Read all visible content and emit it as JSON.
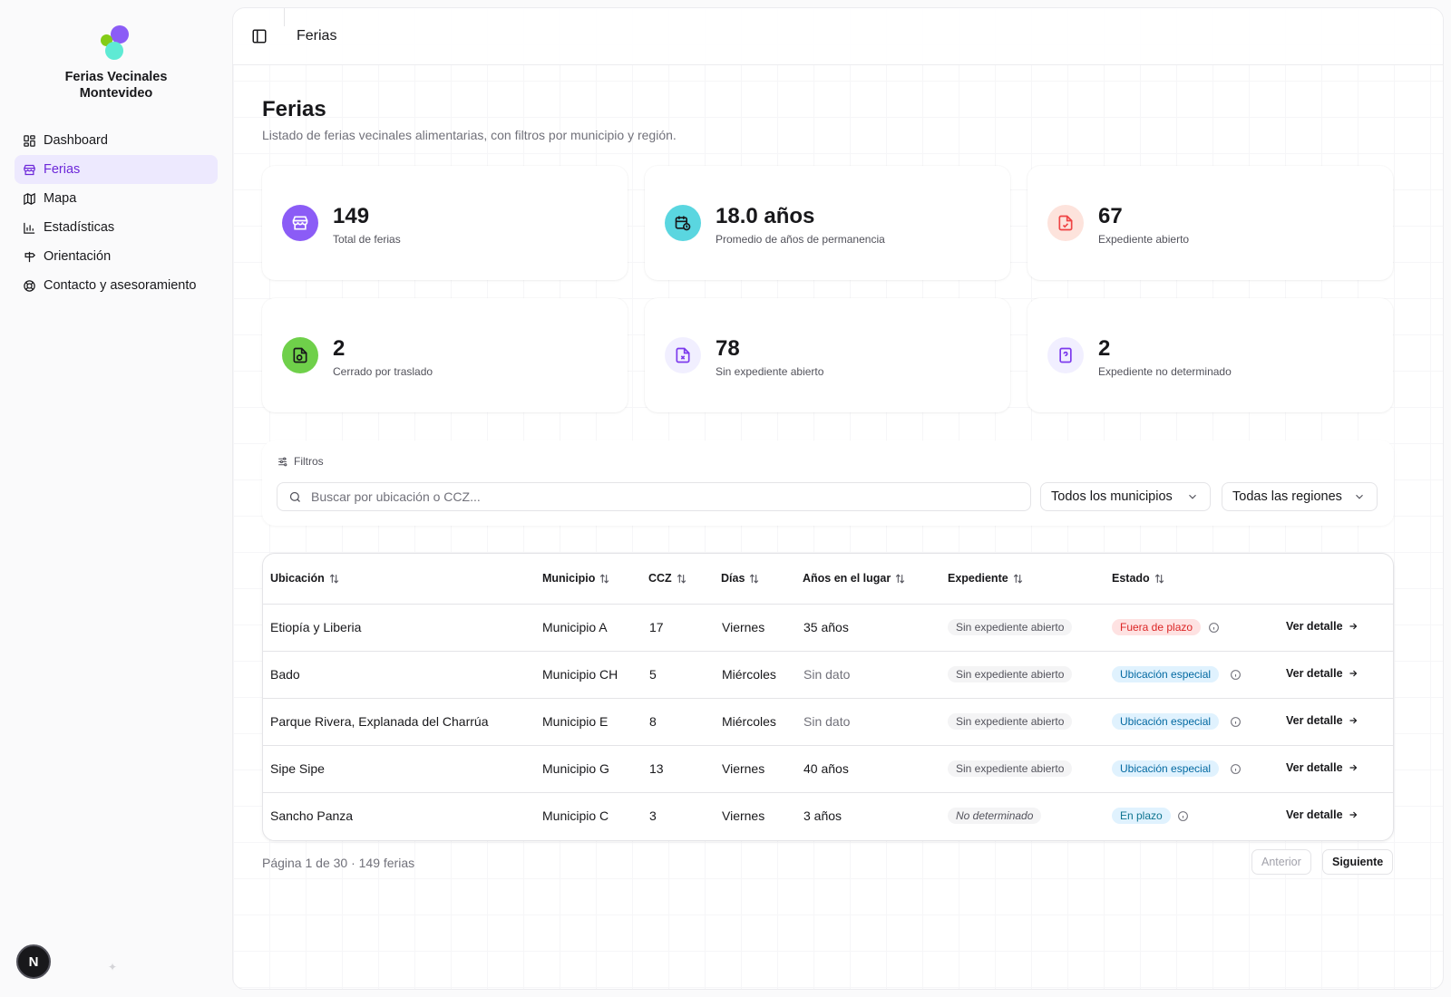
{
  "brand": {
    "name_line1": "Ferias Vecinales",
    "name_line2": "Montevideo"
  },
  "sidebar": {
    "items": [
      {
        "label": "Dashboard",
        "icon": "dashboard-icon",
        "active": false
      },
      {
        "label": "Ferias",
        "icon": "store-icon",
        "active": true
      },
      {
        "label": "Mapa",
        "icon": "map-icon",
        "active": false
      },
      {
        "label": "Estadísticas",
        "icon": "bar-chart-icon",
        "active": false
      },
      {
        "label": "Orientación",
        "icon": "signpost-icon",
        "active": false
      },
      {
        "label": "Contacto y asesoramiento",
        "icon": "lifebuoy-icon",
        "active": false
      }
    ],
    "user_badge": "N"
  },
  "header": {
    "title": "Ferias"
  },
  "page": {
    "title": "Ferias",
    "subtitle": "Listado de ferias vecinales alimentarias, con filtros por municipio y región."
  },
  "stats": [
    {
      "value": "149",
      "label": "Total de ferias",
      "icon": "store-icon",
      "color": "#8b5cf6"
    },
    {
      "value": "18.0 años",
      "label": "Promedio de años de permanencia",
      "icon": "calendar-clock-icon",
      "color": "#5ad6e0"
    },
    {
      "value": "67",
      "label": "Expediente abierto",
      "icon": "file-check-icon",
      "color": "#fde3dc"
    },
    {
      "value": "2",
      "label": "Cerrado por traslado",
      "icon": "file-cycle-icon",
      "color": "#6fd04a"
    },
    {
      "value": "78",
      "label": "Sin expediente abierto",
      "icon": "file-x-icon",
      "color": "#f1efff"
    },
    {
      "value": "2",
      "label": "Expediente no determinado",
      "icon": "file-question-icon",
      "color": "#f1efff"
    }
  ],
  "filters": {
    "title": "Filtros",
    "search_placeholder": "Buscar por ubicación o CCZ...",
    "municipio": "Todos los municipios",
    "region": "Todas las regiones"
  },
  "table": {
    "columns": [
      "Ubicación",
      "Municipio",
      "CCZ",
      "Días",
      "Años en el lugar",
      "Expediente",
      "Estado"
    ],
    "rows": [
      {
        "ubicacion": "Etiopía y Liberia",
        "municipio": "Municipio A",
        "ccz": "17",
        "dias": "Viernes",
        "anios": "35 años",
        "expediente": "Sin expediente abierto",
        "estado": "Fuera de plazo",
        "estado_tone": "red"
      },
      {
        "ubicacion": "Bado",
        "municipio": "Municipio CH",
        "ccz": "5",
        "dias": "Miércoles",
        "anios": "Sin dato",
        "expediente": "Sin expediente abierto",
        "estado": "Ubicación especial",
        "estado_tone": "blue"
      },
      {
        "ubicacion": "Parque Rivera, Explanada del Charrúa",
        "municipio": "Municipio E",
        "ccz": "8",
        "dias": "Miércoles",
        "anios": "Sin dato",
        "expediente": "Sin expediente abierto",
        "estado": "Ubicación especial",
        "estado_tone": "blue"
      },
      {
        "ubicacion": "Sipe Sipe",
        "municipio": "Municipio G",
        "ccz": "13",
        "dias": "Viernes",
        "anios": "40 años",
        "expediente": "Sin expediente abierto",
        "estado": "Ubicación especial",
        "estado_tone": "blue"
      },
      {
        "ubicacion": "Sancho Panza",
        "municipio": "Municipio C",
        "ccz": "3",
        "dias": "Viernes",
        "anios": "3 años",
        "expediente": "No determinado",
        "estado": "En plazo",
        "estado_tone": "teal"
      }
    ],
    "detail_label": "Ver detalle"
  },
  "pagination": {
    "info": "Página 1 de 30 · 149 ferias",
    "prev": "Anterior",
    "next": "Siguiente"
  }
}
